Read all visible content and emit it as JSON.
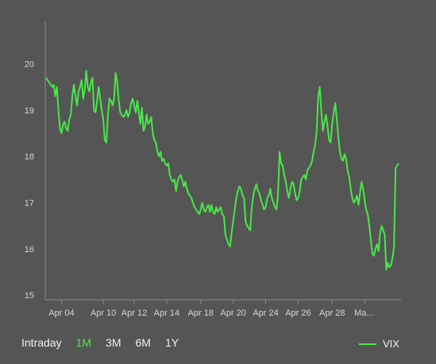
{
  "chart_data": {
    "type": "line",
    "series": [
      {
        "name": "VIX",
        "color": "#47e847",
        "values": [
          19.7,
          19.65,
          19.6,
          19.55,
          19.5,
          19.55,
          19.3,
          19.5,
          19.0,
          18.6,
          18.5,
          18.7,
          18.75,
          18.6,
          18.55,
          18.8,
          18.9,
          19.3,
          19.55,
          19.3,
          19.1,
          19.4,
          19.5,
          19.65,
          19.25,
          19.45,
          19.85,
          19.5,
          19.4,
          19.6,
          19.7,
          19.0,
          18.95,
          19.2,
          19.5,
          19.25,
          19.0,
          18.8,
          18.35,
          18.3,
          18.9,
          19.25,
          19.2,
          19.1,
          19.25,
          19.8,
          19.6,
          19.2,
          18.95,
          18.9,
          18.85,
          18.9,
          19.0,
          18.85,
          18.95,
          19.15,
          19.25,
          19.1,
          18.95,
          19.2,
          18.95,
          18.7,
          19.05,
          18.55,
          18.65,
          18.9,
          18.7,
          18.75,
          18.85,
          18.5,
          18.35,
          18.3,
          18.1,
          18.0,
          18.1,
          17.9,
          17.95,
          17.85,
          17.8,
          17.85,
          17.6,
          17.5,
          17.45,
          17.5,
          17.25,
          17.45,
          17.55,
          17.6,
          17.5,
          17.35,
          17.45,
          17.3,
          17.2,
          17.15,
          17.1,
          17.0,
          16.9,
          16.85,
          16.8,
          16.75,
          16.85,
          17.0,
          16.85,
          16.8,
          16.9,
          16.95,
          16.8,
          16.95,
          16.8,
          16.75,
          16.9,
          16.8,
          16.85,
          16.9,
          16.75,
          16.7,
          16.3,
          16.2,
          16.1,
          16.05,
          16.35,
          16.6,
          16.85,
          17.1,
          17.25,
          17.35,
          17.3,
          17.15,
          17.1,
          16.6,
          16.5,
          16.45,
          16.4,
          16.9,
          17.15,
          17.3,
          17.4,
          17.25,
          17.2,
          17.05,
          16.95,
          16.85,
          16.9,
          17.1,
          17.15,
          17.3,
          17.1,
          17.0,
          16.9,
          16.85,
          17.2,
          18.1,
          17.85,
          17.8,
          17.6,
          17.45,
          17.25,
          17.1,
          17.3,
          17.45,
          17.4,
          17.2,
          17.05,
          17.1,
          17.25,
          17.5,
          17.55,
          17.6,
          17.5,
          17.7,
          17.75,
          17.8,
          17.9,
          18.1,
          18.25,
          18.55,
          19.3,
          19.5,
          18.95,
          18.55,
          18.75,
          18.9,
          18.65,
          18.35,
          18.3,
          18.7,
          18.95,
          19.15,
          18.8,
          18.4,
          18.1,
          17.95,
          17.9,
          18.05,
          17.95,
          17.7,
          17.55,
          17.3,
          17.1,
          17.0,
          17.05,
          17.15,
          16.95,
          17.2,
          17.45,
          17.3,
          17.05,
          16.85,
          16.75,
          16.5,
          16.2,
          15.9,
          15.85,
          16.0,
          16.1,
          15.95,
          16.35,
          16.5,
          16.4,
          16.3,
          15.55,
          15.7,
          15.6,
          15.65,
          15.8,
          16.05,
          17.75,
          17.8,
          17.85
        ]
      }
    ],
    "x_ticks": [
      {
        "label": "Apr 04",
        "index": 10
      },
      {
        "label": "Apr 10",
        "index": 37
      },
      {
        "label": "Apr 12",
        "index": 57
      },
      {
        "label": "Apr 14",
        "index": 78
      },
      {
        "label": "Apr 18",
        "index": 100
      },
      {
        "label": "Apr 20",
        "index": 121
      },
      {
        "label": "Apr 24",
        "index": 142
      },
      {
        "label": "Apr 26",
        "index": 163
      },
      {
        "label": "Apr 28",
        "index": 185
      },
      {
        "label": "Ma…",
        "index": 206
      }
    ],
    "y_ticks": [
      15,
      16,
      17,
      18,
      19,
      20
    ],
    "ylim": [
      14.9,
      20.9
    ],
    "grid": false,
    "legend_position": "bottom-right",
    "title": "",
    "xlabel": "",
    "ylabel": ""
  },
  "controls": {
    "ranges": [
      {
        "label": "Intraday",
        "active": false
      },
      {
        "label": "1M",
        "active": true
      },
      {
        "label": "3M",
        "active": false
      },
      {
        "label": "6M",
        "active": false
      },
      {
        "label": "1Y",
        "active": false
      }
    ]
  },
  "legend": {
    "label": "VIX",
    "color": "#47e847"
  }
}
